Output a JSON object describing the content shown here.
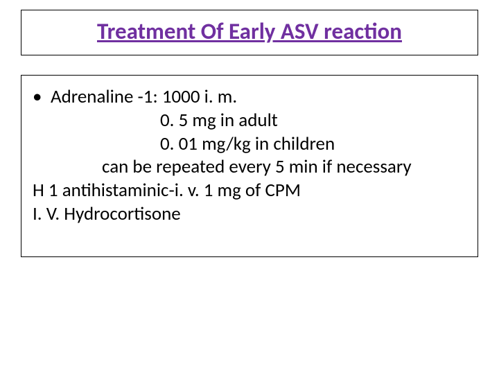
{
  "title": "Treatment Of Early ASV reaction",
  "title_color": "#7030a0",
  "title_fontsize": 33,
  "body_fontsize": 27,
  "body_color": "#000000",
  "border_color": "#000000",
  "background_color": "#ffffff",
  "bullet_marker": "•",
  "lines": {
    "l1": "Adrenaline -1: 1000 i. m.",
    "l2": "0. 5 mg in adult",
    "l3": "0. 01 mg/kg in children",
    "l4": "can be repeated every 5 min if necessary",
    "l5": "H 1 antihistaminic-i. v. 1 mg of CPM",
    "l6": "I. V. Hydrocortisone"
  }
}
